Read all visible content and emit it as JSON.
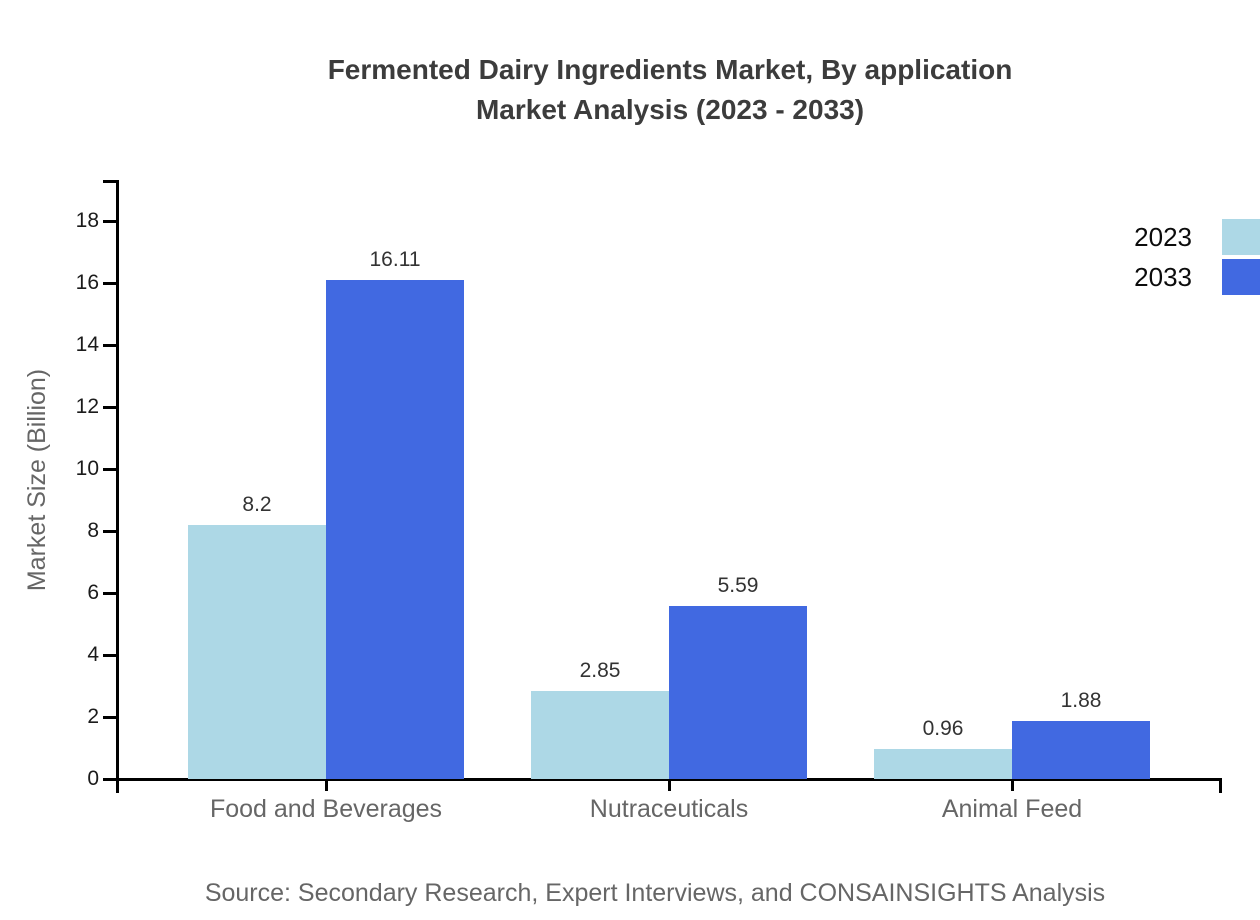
{
  "title": {
    "line1": "Fermented Dairy Ingredients Market, By application",
    "line2": "Market Analysis (2023 - 2033)"
  },
  "chart_data": {
    "type": "bar",
    "categories": [
      "Food and Beverages",
      "Nutraceuticals",
      "Animal Feed"
    ],
    "series": [
      {
        "name": "2023",
        "color": "#add8e6",
        "values": [
          8.2,
          2.85,
          0.96
        ]
      },
      {
        "name": "2033",
        "color": "#4169e1",
        "values": [
          16.11,
          5.59,
          1.88
        ]
      }
    ],
    "value_labels": {
      "2023": [
        "8.2",
        "2.85",
        "0.96"
      ],
      "2033": [
        "16.11",
        "5.59",
        "1.88"
      ]
    },
    "ylabel": "Market Size (Billion)",
    "xlabel": "",
    "yticks": [
      0,
      2,
      4,
      6,
      8,
      10,
      12,
      14,
      16,
      18
    ],
    "ylim": [
      0,
      19.3
    ],
    "grid": false,
    "legend_position": "top-right",
    "axis_color": "#000000",
    "text_color_muted": "#666666",
    "value_label_color": "#333333"
  },
  "source": "Source: Secondary Research, Expert Interviews, and CONSAINSIGHTS Analysis"
}
